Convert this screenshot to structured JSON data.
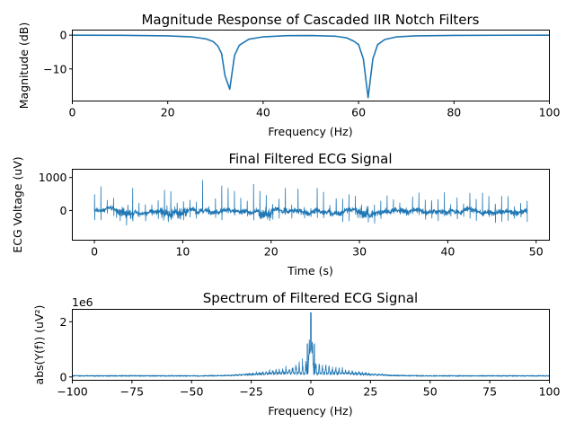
{
  "colors": {
    "series": "#1f77b4"
  },
  "chart_data": [
    {
      "type": "line",
      "title": "Magnitude Response of Cascaded IIR Notch Filters",
      "xlabel": "Frequency (Hz)",
      "ylabel": "Magnitude (dB)",
      "xlim": [
        0,
        100
      ],
      "ylim": [
        -19.5,
        1.5
      ],
      "xticks": [
        0,
        20,
        40,
        60,
        80,
        100
      ],
      "yticks": [
        0,
        -10
      ],
      "grid": false,
      "series": [
        {
          "x": [
            0,
            10,
            20,
            25,
            28,
            29.5,
            30.5,
            31.3,
            32,
            33,
            34,
            35,
            37,
            40,
            45,
            50,
            55,
            57.5,
            59,
            60,
            61,
            62,
            63,
            64,
            65.5,
            68,
            72,
            80,
            90,
            100
          ],
          "values": [
            0,
            -0.05,
            -0.2,
            -0.5,
            -1.1,
            -1.9,
            -3.2,
            -5.5,
            -12,
            -16,
            -6,
            -3,
            -1.2,
            -0.5,
            -0.15,
            -0.1,
            -0.3,
            -0.8,
            -1.8,
            -2.8,
            -7,
            -18.5,
            -7,
            -2.8,
            -1.3,
            -0.5,
            -0.2,
            -0.08,
            -0.03,
            0
          ]
        }
      ]
    },
    {
      "type": "line",
      "title": "Final Filtered ECG Signal",
      "xlabel": "Time (s)",
      "ylabel": "ECG Voltage (uV)",
      "xlim": [
        -2.5,
        51.5
      ],
      "ylim": [
        -900,
        1250
      ],
      "xticks": [
        0,
        10,
        20,
        30,
        40,
        50
      ],
      "yticks": [
        1000,
        0
      ],
      "x_range": [
        0,
        49
      ],
      "beat_interval_s": 0.72,
      "noise_band": [
        -300,
        250
      ],
      "peak_range": [
        150,
        1150
      ],
      "dip_min": -830
    },
    {
      "type": "line",
      "title": "Spectrum of Filtered ECG Signal",
      "xlabel": "Frequency (Hz)",
      "ylabel": "abs(Y(f)) (uV²)",
      "offset_text": "1e6",
      "xlim": [
        -100,
        100
      ],
      "ylim": [
        -0.12,
        2.45
      ],
      "xticks": [
        -100,
        -75,
        -50,
        -25,
        0,
        25,
        50,
        75,
        100
      ],
      "yticks": [
        0,
        2
      ],
      "peak_value": 2.33,
      "secondary_peak": 1.2,
      "floor_level": 0.02
    }
  ]
}
